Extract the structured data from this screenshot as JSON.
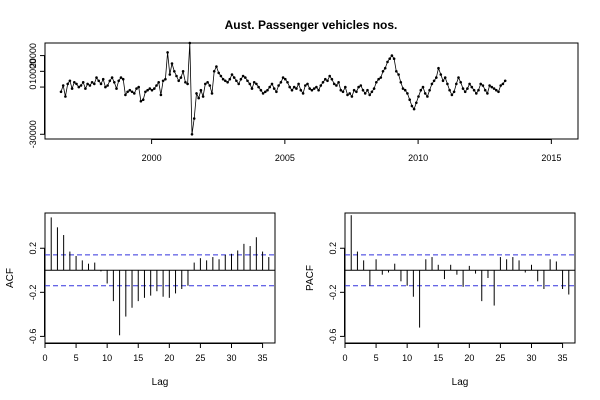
{
  "chart_data": [
    {
      "type": "line",
      "title": "Aust. Passenger vehicles nos.",
      "xlabel": "",
      "ylabel": "",
      "xlim": [
        1996.0,
        2016.0
      ],
      "ylim": [
        -33000,
        28000
      ],
      "xticks": [
        "2000",
        "2005",
        "2010",
        "2015"
      ],
      "yticks": [
        "-30000",
        "0",
        "10000",
        "20000"
      ],
      "series": [
        {
          "start": 1996.6,
          "step": 0.0833333,
          "values": [
            -3000,
            1000,
            -6000,
            2000,
            4000,
            -1000,
            3000,
            2000,
            0,
            1000,
            3000,
            -1000,
            2000,
            1000,
            3000,
            2000,
            6000,
            4000,
            2000,
            5000,
            0,
            1000,
            4000,
            6000,
            3000,
            -1000,
            4000,
            6000,
            5000,
            -5000,
            -3000,
            -2000,
            -3000,
            -4000,
            -1000,
            0,
            -9000,
            -8000,
            -3000,
            -2000,
            -1000,
            -2000,
            -1000,
            1000,
            3000,
            -5000,
            4000,
            5000,
            22000,
            8000,
            15000,
            10000,
            7000,
            4000,
            6000,
            10000,
            3000,
            2000,
            28000,
            -30000,
            -20000,
            -4000,
            -7000,
            -2000,
            -6000,
            2000,
            3000,
            1000,
            -4000,
            10000,
            13000,
            9000,
            7000,
            5000,
            4000,
            3000,
            5000,
            8000,
            6000,
            4000,
            2000,
            5000,
            7000,
            6000,
            4000,
            2000,
            -1000,
            3000,
            2000,
            0,
            -2000,
            -4000,
            -3000,
            -2000,
            0,
            2000,
            -1000,
            -3000,
            1000,
            3000,
            6000,
            5000,
            3000,
            0,
            -2000,
            0,
            -1000,
            2000,
            -2000,
            -4000,
            1000,
            2000,
            -1000,
            -2000,
            -1000,
            0,
            -2000,
            1000,
            3000,
            5000,
            4000,
            7000,
            5000,
            2000,
            1000,
            3000,
            -2000,
            -3000,
            0,
            -5000,
            -4000,
            -6000,
            -2000,
            -3000,
            0,
            1000,
            -2000,
            -4000,
            -2000,
            -5000,
            -3000,
            -1000,
            3000,
            5000,
            6000,
            10000,
            12000,
            16000,
            18000,
            20000,
            18000,
            10000,
            8000,
            3000,
            -1000,
            -2000,
            -4000,
            -8000,
            -12000,
            -14000,
            -10000,
            -6000,
            -2000,
            0,
            -4000,
            -6000,
            -2000,
            2000,
            4000,
            6000,
            12000,
            8000,
            4000,
            6000,
            2000,
            -2000,
            -5000,
            -3000,
            2000,
            6000,
            3000,
            -1000,
            -3000,
            -1000,
            2000,
            0,
            -2000,
            -4000,
            -2000,
            2000,
            1000,
            -2000,
            -4000,
            1000,
            0,
            -1000,
            -2000,
            -3000,
            1000,
            2000,
            4000
          ]
        }
      ]
    },
    {
      "type": "bar",
      "subtype": "acf",
      "ylabel": "ACF",
      "xlabel": "Lag",
      "xlim": [
        0,
        37
      ],
      "ylim": [
        -0.66,
        0.52
      ],
      "xticks": [
        "0",
        "5",
        "10",
        "15",
        "20",
        "25",
        "30",
        "35"
      ],
      "yticks": [
        "-0.6",
        "-0.2",
        "0.2"
      ],
      "conf_limit": 0.14,
      "lags": [
        1,
        2,
        3,
        4,
        5,
        6,
        7,
        8,
        9,
        10,
        11,
        12,
        13,
        14,
        15,
        16,
        17,
        18,
        19,
        20,
        21,
        22,
        23,
        24,
        25,
        26,
        27,
        28,
        29,
        30,
        31,
        32,
        33,
        34,
        35,
        36
      ],
      "values": [
        0.48,
        0.39,
        0.32,
        0.17,
        0.13,
        0.09,
        0.06,
        0.07,
        -0.01,
        -0.12,
        -0.28,
        -0.59,
        -0.42,
        -0.34,
        -0.28,
        -0.25,
        -0.23,
        -0.19,
        -0.24,
        -0.25,
        -0.21,
        -0.17,
        -0.14,
        0.07,
        0.11,
        0.09,
        0.12,
        0.1,
        0.14,
        0.15,
        0.18,
        0.24,
        0.22,
        0.3,
        0.17,
        0.12
      ]
    },
    {
      "type": "bar",
      "subtype": "pacf",
      "ylabel": "PACF",
      "xlabel": "Lag",
      "xlim": [
        0,
        37
      ],
      "ylim": [
        -0.66,
        0.52
      ],
      "xticks": [
        "0",
        "5",
        "10",
        "15",
        "20",
        "25",
        "30",
        "35"
      ],
      "yticks": [
        "-0.6",
        "-0.2",
        "0.2"
      ],
      "conf_limit": 0.14,
      "lags": [
        1,
        2,
        3,
        4,
        5,
        6,
        7,
        8,
        9,
        10,
        11,
        12,
        13,
        14,
        15,
        16,
        17,
        18,
        19,
        20,
        21,
        22,
        23,
        24,
        25,
        26,
        27,
        28,
        29,
        30,
        31,
        32,
        33,
        34,
        35,
        36
      ],
      "values": [
        0.5,
        0.17,
        0.09,
        -0.14,
        0.1,
        -0.04,
        -0.02,
        0.06,
        -0.1,
        -0.14,
        -0.24,
        -0.52,
        0.1,
        0.12,
        0.05,
        -0.08,
        0.05,
        -0.04,
        -0.15,
        0.04,
        -0.03,
        -0.28,
        -0.07,
        -0.32,
        0.12,
        0.1,
        0.12,
        0.09,
        -0.02,
        0.05,
        -0.1,
        -0.17,
        0.1,
        0.08,
        -0.17,
        -0.22
      ]
    }
  ]
}
